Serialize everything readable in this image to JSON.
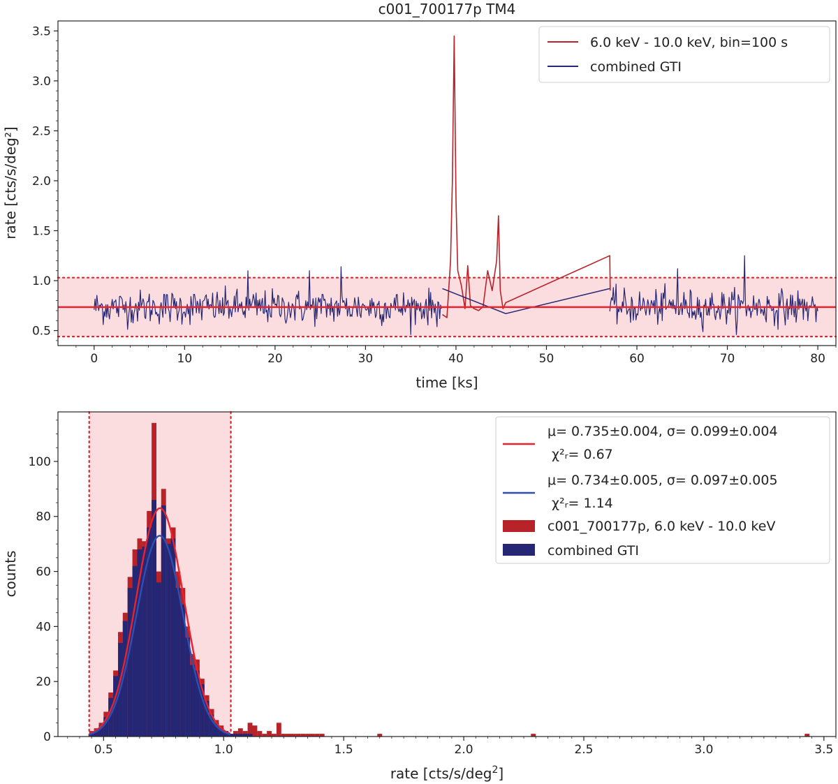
{
  "colors": {
    "red": "#b8232a",
    "navy": "#262774",
    "fit_red": "#e8232e",
    "fit_blue": "#2f4fb0",
    "band": "#fbdde0",
    "band_edge": "#e0202a"
  },
  "chart_data": [
    {
      "type": "line",
      "title": "c001_700177p TM4",
      "xlabel": "time [ks]",
      "ylabel": "rate [cts/s/deg²]",
      "xlim": [
        -4,
        82
      ],
      "ylim": [
        0.35,
        3.6
      ],
      "xticks": [
        0,
        10,
        20,
        30,
        40,
        50,
        60,
        70,
        80
      ],
      "yticks": [
        0.5,
        1.0,
        1.5,
        2.0,
        2.5,
        3.0,
        3.5
      ],
      "ytick_labels": [
        "0.5",
        "1.0",
        "1.5",
        "2.0",
        "2.5",
        "3.0",
        "3.5"
      ],
      "mean_line": 0.735,
      "band": [
        0.44,
        1.03
      ],
      "legend_position": "upper right",
      "series": [
        {
          "name": "6.0 keV - 10.0 keV, bin=100 s",
          "color": "#b8232a",
          "x": [
            38.5,
            39.0,
            39.4,
            39.6,
            39.8,
            40.0,
            40.2,
            40.6,
            41.0,
            41.3,
            41.6,
            42.0,
            42.5,
            43.0,
            43.5,
            44.0,
            44.5,
            44.7,
            44.9,
            45.2,
            45.5,
            57.0,
            57.05
          ],
          "y": [
            0.66,
            0.63,
            1.2,
            2.0,
            3.45,
            1.8,
            1.1,
            0.95,
            0.72,
            1.15,
            0.75,
            0.72,
            0.7,
            0.74,
            1.1,
            0.9,
            1.2,
            1.65,
            0.9,
            0.72,
            0.78,
            1.25,
            0.9
          ]
        },
        {
          "name": "combined GTI",
          "color": "#262774",
          "x_start": 0,
          "x_end": 80,
          "step": 0.1,
          "mean": 0.735,
          "sigma": 0.1,
          "gaps": [
            [
              38.5,
              45.5
            ],
            [
              45.5,
              57.0
            ]
          ],
          "gap_line": [
            [
              38.5,
              0.92
            ],
            [
              45.5,
              0.67
            ],
            [
              57.0,
              0.92
            ]
          ],
          "spikes": [
            [
              17.0,
              1.1
            ],
            [
              23.8,
              1.1
            ],
            [
              27.3,
              1.14
            ],
            [
              39.0,
              0.9
            ],
            [
              64.5,
              1.12
            ],
            [
              71.9,
              1.25
            ]
          ]
        }
      ]
    },
    {
      "type": "bar",
      "xlabel": "rate [cts/s/deg²]",
      "ylabel": "counts",
      "xlim": [
        0.31,
        3.55
      ],
      "ylim": [
        0,
        118
      ],
      "xticks": [
        0.5,
        1.0,
        1.5,
        2.0,
        2.5,
        3.0,
        3.5
      ],
      "xtick_labels": [
        "0.5",
        "1.0",
        "1.5",
        "2.0",
        "2.5",
        "3.0",
        "3.5"
      ],
      "yticks": [
        0,
        20,
        40,
        60,
        80,
        100
      ],
      "band": [
        0.44,
        1.03
      ],
      "bin_width": 0.02,
      "legend_position": "upper right",
      "series": [
        {
          "name": "c001_700177p, 6.0 keV - 10.0 keV",
          "color": "#b8232a",
          "bin_starts": [
            0.44,
            0.46,
            0.48,
            0.5,
            0.52,
            0.54,
            0.56,
            0.58,
            0.6,
            0.62,
            0.64,
            0.66,
            0.68,
            0.7,
            0.72,
            0.74,
            0.76,
            0.78,
            0.8,
            0.82,
            0.84,
            0.86,
            0.88,
            0.9,
            0.92,
            0.94,
            0.96,
            0.98,
            1.0,
            1.02,
            1.04,
            1.06,
            1.08,
            1.1,
            1.12,
            1.14,
            1.16,
            1.18,
            1.2,
            1.22,
            1.24,
            1.26,
            1.28,
            1.3,
            1.32,
            1.34,
            1.36,
            1.38,
            1.4,
            1.64,
            2.28,
            3.42
          ],
          "counts": [
            2,
            3,
            5,
            9,
            16,
            24,
            38,
            45,
            58,
            68,
            72,
            71,
            82,
            114,
            60,
            90,
            72,
            76,
            60,
            54,
            40,
            30,
            28,
            21,
            15,
            10,
            6,
            4,
            2,
            1,
            2,
            3,
            2,
            5,
            4,
            2,
            1,
            2,
            1,
            5,
            1,
            1,
            1,
            1,
            1,
            1,
            1,
            1,
            1,
            1,
            1,
            1
          ]
        },
        {
          "name": "combined GTI",
          "color": "#262774",
          "bin_starts": [
            0.44,
            0.46,
            0.48,
            0.5,
            0.52,
            0.54,
            0.56,
            0.58,
            0.6,
            0.62,
            0.64,
            0.66,
            0.68,
            0.7,
            0.72,
            0.74,
            0.76,
            0.78,
            0.8,
            0.82,
            0.84,
            0.86,
            0.88,
            0.9,
            0.92,
            0.94,
            0.96,
            0.98,
            1.0,
            1.02,
            1.04,
            1.06,
            1.08,
            1.1
          ],
          "counts": [
            1,
            2,
            4,
            7,
            14,
            22,
            34,
            42,
            54,
            62,
            68,
            69,
            76,
            86,
            56,
            84,
            70,
            72,
            54,
            48,
            36,
            26,
            24,
            19,
            13,
            8,
            5,
            3,
            2,
            1,
            1,
            1,
            1,
            1
          ]
        }
      ],
      "fits": [
        {
          "mu": 0.735,
          "sigma": 0.099,
          "amplitude": 83,
          "color": "#e8232e",
          "label_line1": "μ= 0.735±0.004, σ= 0.099±0.004",
          "label_line2": "χ²ᵣ= 0.67"
        },
        {
          "mu": 0.734,
          "sigma": 0.097,
          "amplitude": 73,
          "color": "#2f4fb0",
          "label_line1": "μ= 0.734±0.005, σ= 0.097±0.005",
          "label_line2": "χ²ᵣ= 1.14"
        }
      ]
    }
  ]
}
